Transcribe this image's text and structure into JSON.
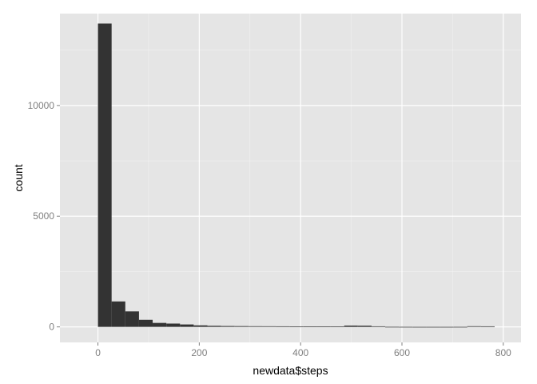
{
  "chart_data": {
    "type": "bar",
    "xlabel": "newdata$steps",
    "ylabel": "count",
    "xlim": [
      -75,
      835
    ],
    "ylim": [
      -700,
      14150
    ],
    "x_ticks": [
      0,
      200,
      400,
      600,
      800
    ],
    "y_ticks": [
      0,
      5000,
      10000
    ],
    "bin_width": 27,
    "bins": [
      {
        "start": 0,
        "end": 27,
        "count": 13700
      },
      {
        "start": 27,
        "end": 54,
        "count": 1150
      },
      {
        "start": 54,
        "end": 81,
        "count": 700
      },
      {
        "start": 81,
        "end": 108,
        "count": 320
      },
      {
        "start": 108,
        "end": 135,
        "count": 180
      },
      {
        "start": 135,
        "end": 162,
        "count": 150
      },
      {
        "start": 162,
        "end": 189,
        "count": 110
      },
      {
        "start": 189,
        "end": 216,
        "count": 70
      },
      {
        "start": 216,
        "end": 243,
        "count": 50
      },
      {
        "start": 243,
        "end": 270,
        "count": 40
      },
      {
        "start": 270,
        "end": 297,
        "count": 35
      },
      {
        "start": 297,
        "end": 324,
        "count": 30
      },
      {
        "start": 324,
        "end": 351,
        "count": 28
      },
      {
        "start": 351,
        "end": 378,
        "count": 25
      },
      {
        "start": 378,
        "end": 405,
        "count": 22
      },
      {
        "start": 405,
        "end": 432,
        "count": 20
      },
      {
        "start": 432,
        "end": 459,
        "count": 20
      },
      {
        "start": 459,
        "end": 486,
        "count": 22
      },
      {
        "start": 486,
        "end": 513,
        "count": 60
      },
      {
        "start": 513,
        "end": 540,
        "count": 55
      },
      {
        "start": 540,
        "end": 567,
        "count": 25
      },
      {
        "start": 567,
        "end": 594,
        "count": 5
      },
      {
        "start": 594,
        "end": 621,
        "count": 3
      },
      {
        "start": 621,
        "end": 648,
        "count": 2
      },
      {
        "start": 648,
        "end": 675,
        "count": 2
      },
      {
        "start": 675,
        "end": 702,
        "count": 2
      },
      {
        "start": 702,
        "end": 729,
        "count": 3
      },
      {
        "start": 729,
        "end": 756,
        "count": 30
      },
      {
        "start": 756,
        "end": 783,
        "count": 25
      }
    ],
    "grid": true,
    "colors": {
      "panel_background": "#e5e5e5",
      "grid_major": "#ffffff",
      "grid_minor": "#f2f2f2",
      "bar_fill": "#333333",
      "tick_text": "#7f7f7f",
      "axis_title": "#000000"
    }
  }
}
